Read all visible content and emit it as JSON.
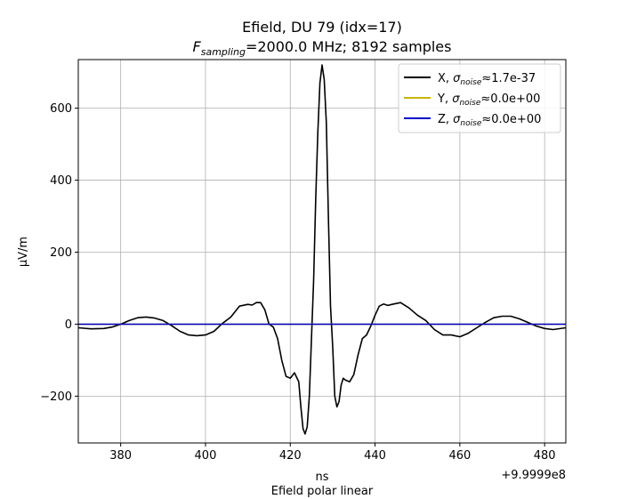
{
  "chart_data": {
    "type": "line",
    "title": "Efield, DU 79 (idx=17)",
    "subtitle_prefix": "F",
    "subtitle_sub": "sampling",
    "subtitle_rest": "=2000.0 MHz; 8192 samples",
    "xlabel": "ns",
    "ylabel": "μV/m",
    "footer": "Efield polar linear",
    "x_offset_label": "+9.9999e8",
    "xlim": [
      370,
      485
    ],
    "ylim": [
      -330,
      735
    ],
    "xticks": [
      380,
      400,
      420,
      440,
      460,
      480
    ],
    "yticks": [
      -200,
      0,
      200,
      400,
      600
    ],
    "ytick_labels": [
      "−200",
      "0",
      "200",
      "400",
      "600"
    ],
    "grid": true,
    "legend_position": "top-right",
    "series": [
      {
        "name_prefix": "X, ",
        "name_math": "σ",
        "name_sub": "noise",
        "name_value": "≈1.7e-37",
        "color": "#000000",
        "x": [
          370,
          373,
          376,
          378,
          380,
          382,
          384,
          386,
          388,
          390,
          392,
          394,
          396,
          398,
          400,
          402,
          404,
          406,
          408,
          410,
          411,
          412,
          413,
          414,
          415,
          416,
          417,
          418,
          419,
          420,
          421,
          422,
          422.5,
          423,
          423.5,
          424,
          424.5,
          425,
          425.5,
          426,
          426.5,
          427,
          427.5,
          428,
          428.5,
          429,
          429.5,
          430,
          430.5,
          431,
          431.5,
          432,
          432.5,
          433,
          434,
          435,
          436,
          437,
          438,
          439,
          440,
          441,
          442,
          443,
          444,
          446,
          448,
          450,
          452,
          454,
          456,
          458,
          460,
          462,
          464,
          466,
          468,
          470,
          472,
          474,
          476,
          478,
          480,
          482,
          485
        ],
        "y": [
          -10,
          -13,
          -12,
          -8,
          0,
          10,
          18,
          20,
          17,
          10,
          -4,
          -20,
          -30,
          -32,
          -30,
          -20,
          2,
          20,
          50,
          55,
          53,
          60,
          60,
          40,
          0,
          -8,
          -40,
          -100,
          -145,
          -150,
          -135,
          -160,
          -230,
          -290,
          -305,
          -285,
          -200,
          -40,
          120,
          350,
          530,
          670,
          720,
          680,
          560,
          300,
          50,
          -60,
          -200,
          -230,
          -215,
          -170,
          -150,
          -155,
          -160,
          -140,
          -85,
          -40,
          -30,
          -5,
          25,
          50,
          56,
          52,
          55,
          60,
          45,
          25,
          10,
          -15,
          -30,
          -30,
          -35,
          -25,
          -10,
          5,
          18,
          22,
          22,
          15,
          5,
          -5,
          -12,
          -15,
          -10
        ]
      },
      {
        "name_prefix": "Y, ",
        "name_math": "σ",
        "name_sub": "noise",
        "name_value": "≈0.0e+00",
        "color": "#c8b400",
        "x": [
          370,
          485
        ],
        "y": [
          0,
          0
        ]
      },
      {
        "name_prefix": "Z, ",
        "name_math": "σ",
        "name_sub": "noise",
        "name_value": "≈0.0e+00",
        "color": "#0000cc",
        "x": [
          370,
          485
        ],
        "y": [
          0,
          0
        ]
      }
    ]
  }
}
